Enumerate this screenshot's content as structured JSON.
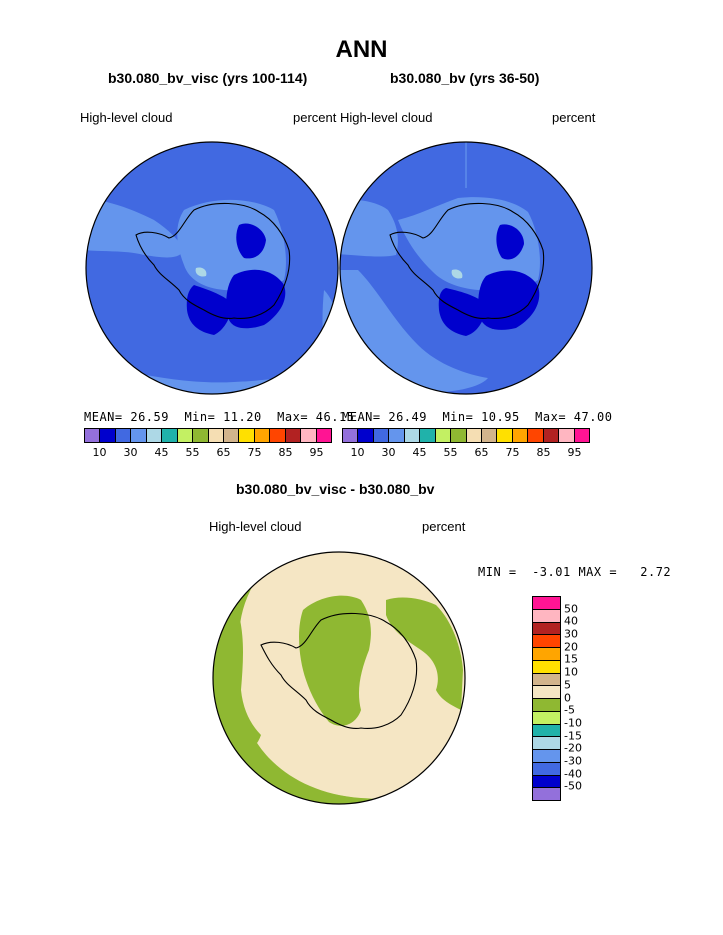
{
  "title": "ANN",
  "panels": [
    {
      "title": "b30.080_bv_visc (yrs 100-114)",
      "left_label": "High-level cloud",
      "right_label": "percent",
      "stats": {
        "mean_label": "MEAN=",
        "mean": "26.59",
        "min_label": "Min=",
        "min": "11.20",
        "max_label": "Max=",
        "max": "46.15"
      }
    },
    {
      "title": "b30.080_bv (yrs 36-50)",
      "left_label": "High-level cloud",
      "right_label": "percent",
      "stats": {
        "mean_label": "MEAN=",
        "mean": "26.49",
        "min_label": "Min=",
        "min": "10.95",
        "max_label": "Max=",
        "max": "47.00"
      }
    }
  ],
  "colorbar": {
    "colors": [
      "#9370DB",
      "#0000CD",
      "#4169E1",
      "#6495ED",
      "#ADD8E6",
      "#20B2AA",
      "#C3F063",
      "#8FB832",
      "#F5DEB3",
      "#D2B48C",
      "#FFE000",
      "#FFA500",
      "#FF4500",
      "#B22222",
      "#FFB6C1",
      "#FF1493"
    ],
    "tick_labels": [
      "10",
      "30",
      "45",
      "55",
      "65",
      "75",
      "85",
      "95"
    ]
  },
  "diff": {
    "title": "b30.080_bv_visc - b30.080_bv",
    "left_label": "High-level cloud",
    "right_label": "percent",
    "min_label": "MIN =",
    "min": "-3.01",
    "max_label": "MAX =",
    "max": "2.72",
    "colorbar": {
      "colors": [
        "#9370DB",
        "#0000CD",
        "#4169E1",
        "#6495ED",
        "#ADD8E6",
        "#20B2AA",
        "#C3F063",
        "#8FB832",
        "#F5E6C4",
        "#D2B48C",
        "#FFE000",
        "#FFA500",
        "#FF4500",
        "#B22222",
        "#FFB6C1",
        "#FF1493"
      ],
      "tick_labels": [
        "-50",
        "-40",
        "-30",
        "-20",
        "-15",
        "-10",
        "-5",
        "0",
        "5",
        "10",
        "15",
        "20",
        "30",
        "40",
        "50"
      ]
    }
  },
  "map_colors": {
    "ocean_blue": "#4169E1",
    "light_blue": "#6495ED",
    "dark_blue": "#0000CD",
    "pale": "#ADD8E6",
    "green": "#8FB832",
    "tan": "#F5E6C4",
    "coast": "#000000"
  }
}
